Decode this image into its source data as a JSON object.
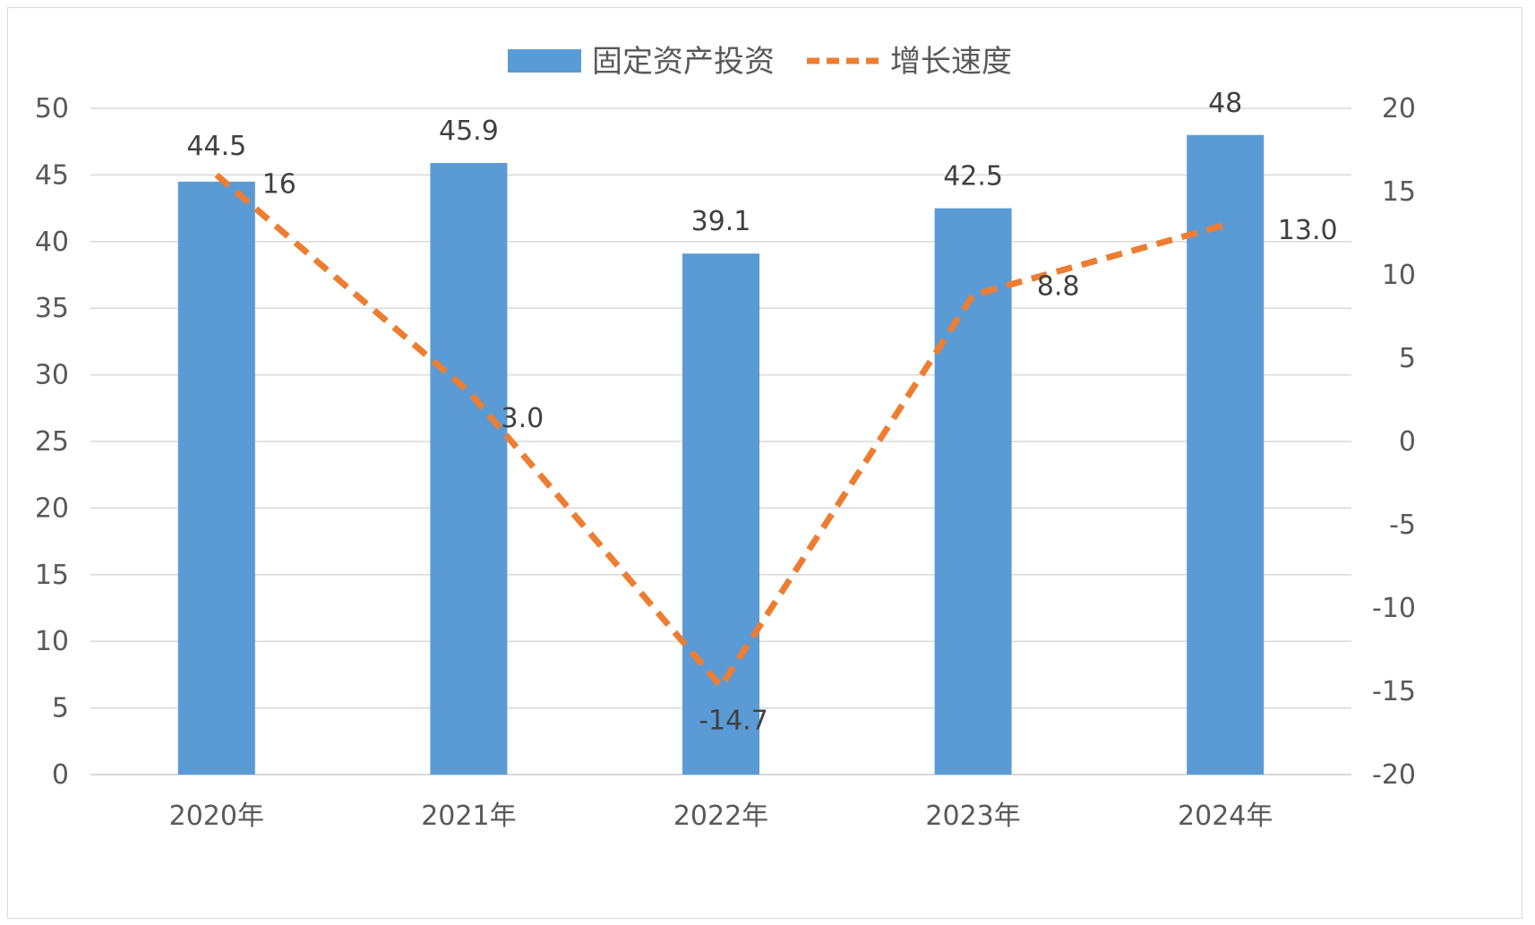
{
  "colors": {
    "bar": "#5b9bd5",
    "line": "#ed7d31",
    "grid": "#d9d9d9",
    "text": "#595959",
    "label": "#404040"
  },
  "chart_data": {
    "type": "bar",
    "categories": [
      "2020年",
      "2021年",
      "2022年",
      "2023年",
      "2024年"
    ],
    "series": [
      {
        "name": "固定资产投资",
        "type": "bar",
        "axis": "left",
        "values": [
          44.5,
          45.9,
          39.1,
          42.5,
          48
        ],
        "labels": [
          "44.5",
          "45.9",
          "39.1",
          "42.5",
          "48"
        ]
      },
      {
        "name": "增长速度",
        "type": "line",
        "style": "dashed",
        "axis": "right",
        "values": [
          16,
          3.0,
          -14.7,
          8.8,
          13.0
        ],
        "labels": [
          "16",
          "3.0",
          "-14.7",
          "8.8",
          "13.0"
        ]
      }
    ],
    "y_left": {
      "min": 0,
      "max": 50,
      "step": 5
    },
    "y_right": {
      "min": -20,
      "max": 20,
      "step": 5
    },
    "grid": true,
    "legend_position": "top"
  }
}
